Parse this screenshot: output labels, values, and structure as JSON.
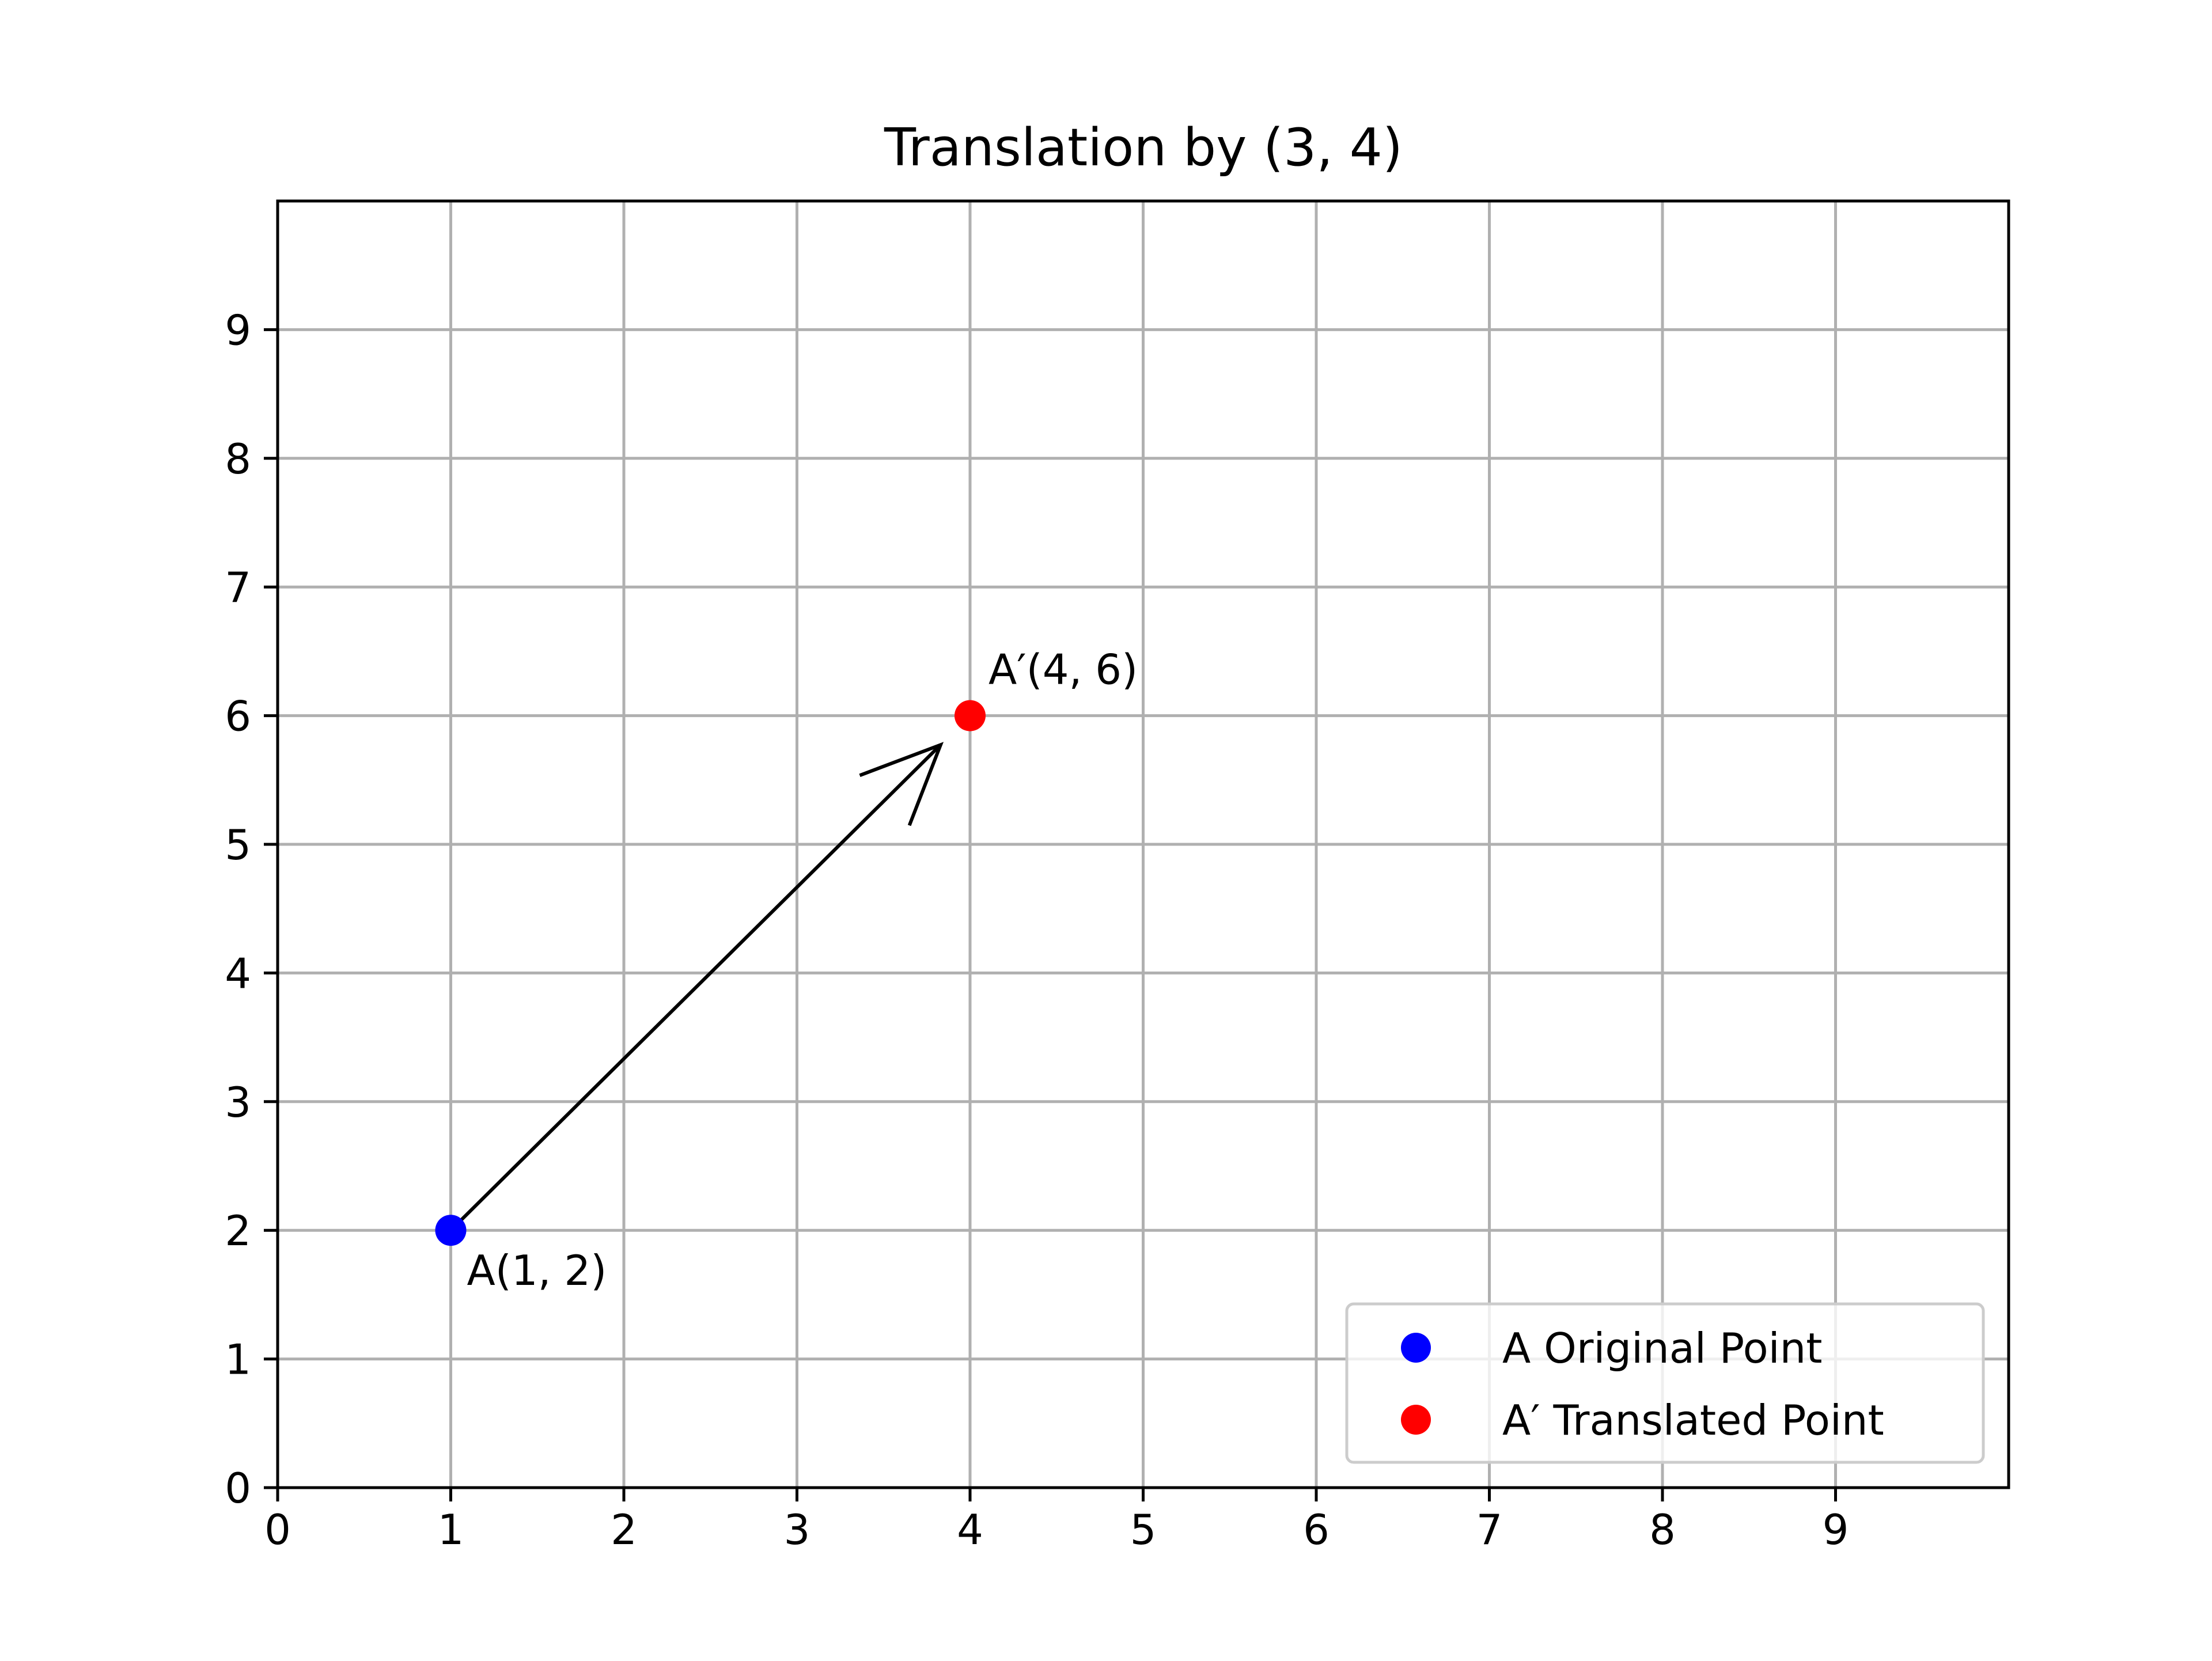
{
  "chart_data": {
    "type": "scatter",
    "title": "Translation by (3, 4)",
    "xlabel": "",
    "ylabel": "",
    "xlim": [
      0,
      10
    ],
    "ylim": [
      0,
      10
    ],
    "x_ticks": [
      0,
      1,
      2,
      3,
      4,
      5,
      6,
      7,
      8,
      9
    ],
    "y_ticks": [
      0,
      1,
      2,
      3,
      4,
      5,
      6,
      7,
      8,
      9
    ],
    "grid": true,
    "legend_position": "lower-right",
    "series": [
      {
        "name": "A Original Point",
        "color": "#0000ff",
        "points": [
          {
            "x": 1,
            "y": 2
          }
        ]
      },
      {
        "name": "A′ Translated Point",
        "color": "#ff0000",
        "points": [
          {
            "x": 4,
            "y": 6
          }
        ]
      }
    ],
    "annotations": [
      {
        "text": "A(1, 2)",
        "x": 1,
        "y": 2
      },
      {
        "text": "A′(4, 6)",
        "x": 4,
        "y": 6
      }
    ],
    "arrow": {
      "from": [
        1,
        2
      ],
      "to": [
        4,
        6
      ],
      "color": "#000000"
    }
  }
}
